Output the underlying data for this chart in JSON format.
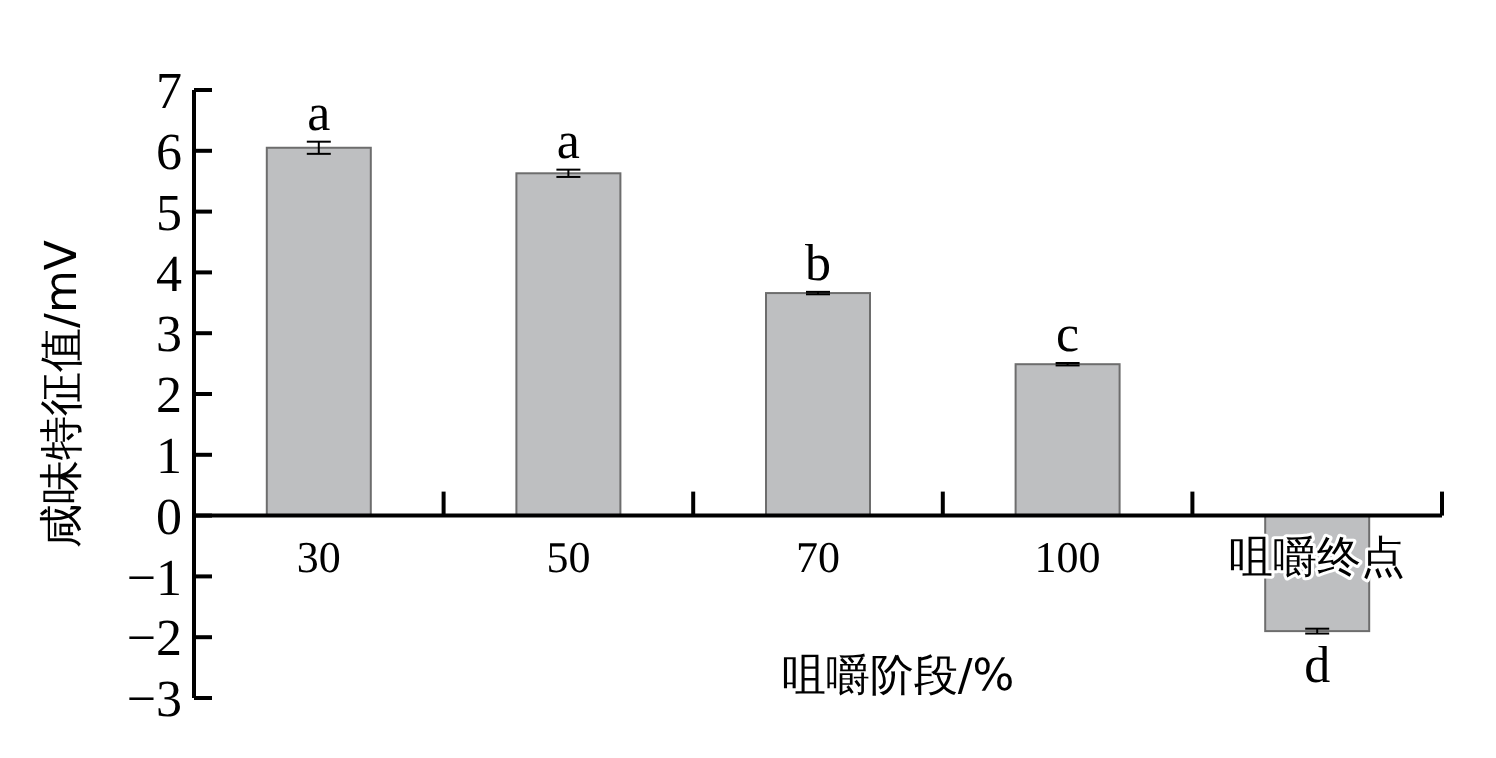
{
  "chart_data": {
    "type": "bar",
    "xlabel": "咀嚼阶段/%",
    "ylabel": "咸味特征值/mV",
    "categories": [
      "30",
      "50",
      "70",
      "100",
      "咀嚼终点"
    ],
    "series": [
      {
        "color": "#bebfc1",
        "values": [
          6.05,
          5.63,
          3.66,
          2.49,
          -1.9
        ],
        "errors": [
          0.1,
          0.06,
          0.02,
          0.02,
          0.04
        ]
      }
    ],
    "ylim": [
      -3,
      7
    ],
    "yticks": [
      -3,
      -2,
      -1,
      0,
      1,
      2,
      3,
      4,
      5,
      6,
      7
    ],
    "annotations": [
      {
        "text": "a",
        "x": "30",
        "y": 6.05
      },
      {
        "text": "a",
        "x": "50",
        "y": 5.63
      },
      {
        "text": "b",
        "x": "70",
        "y": 3.66
      },
      {
        "text": "c",
        "x": "100",
        "y": 2.49
      },
      {
        "text": "d",
        "x": "咀嚼终点",
        "y": -1.9
      }
    ],
    "grid": false
  }
}
